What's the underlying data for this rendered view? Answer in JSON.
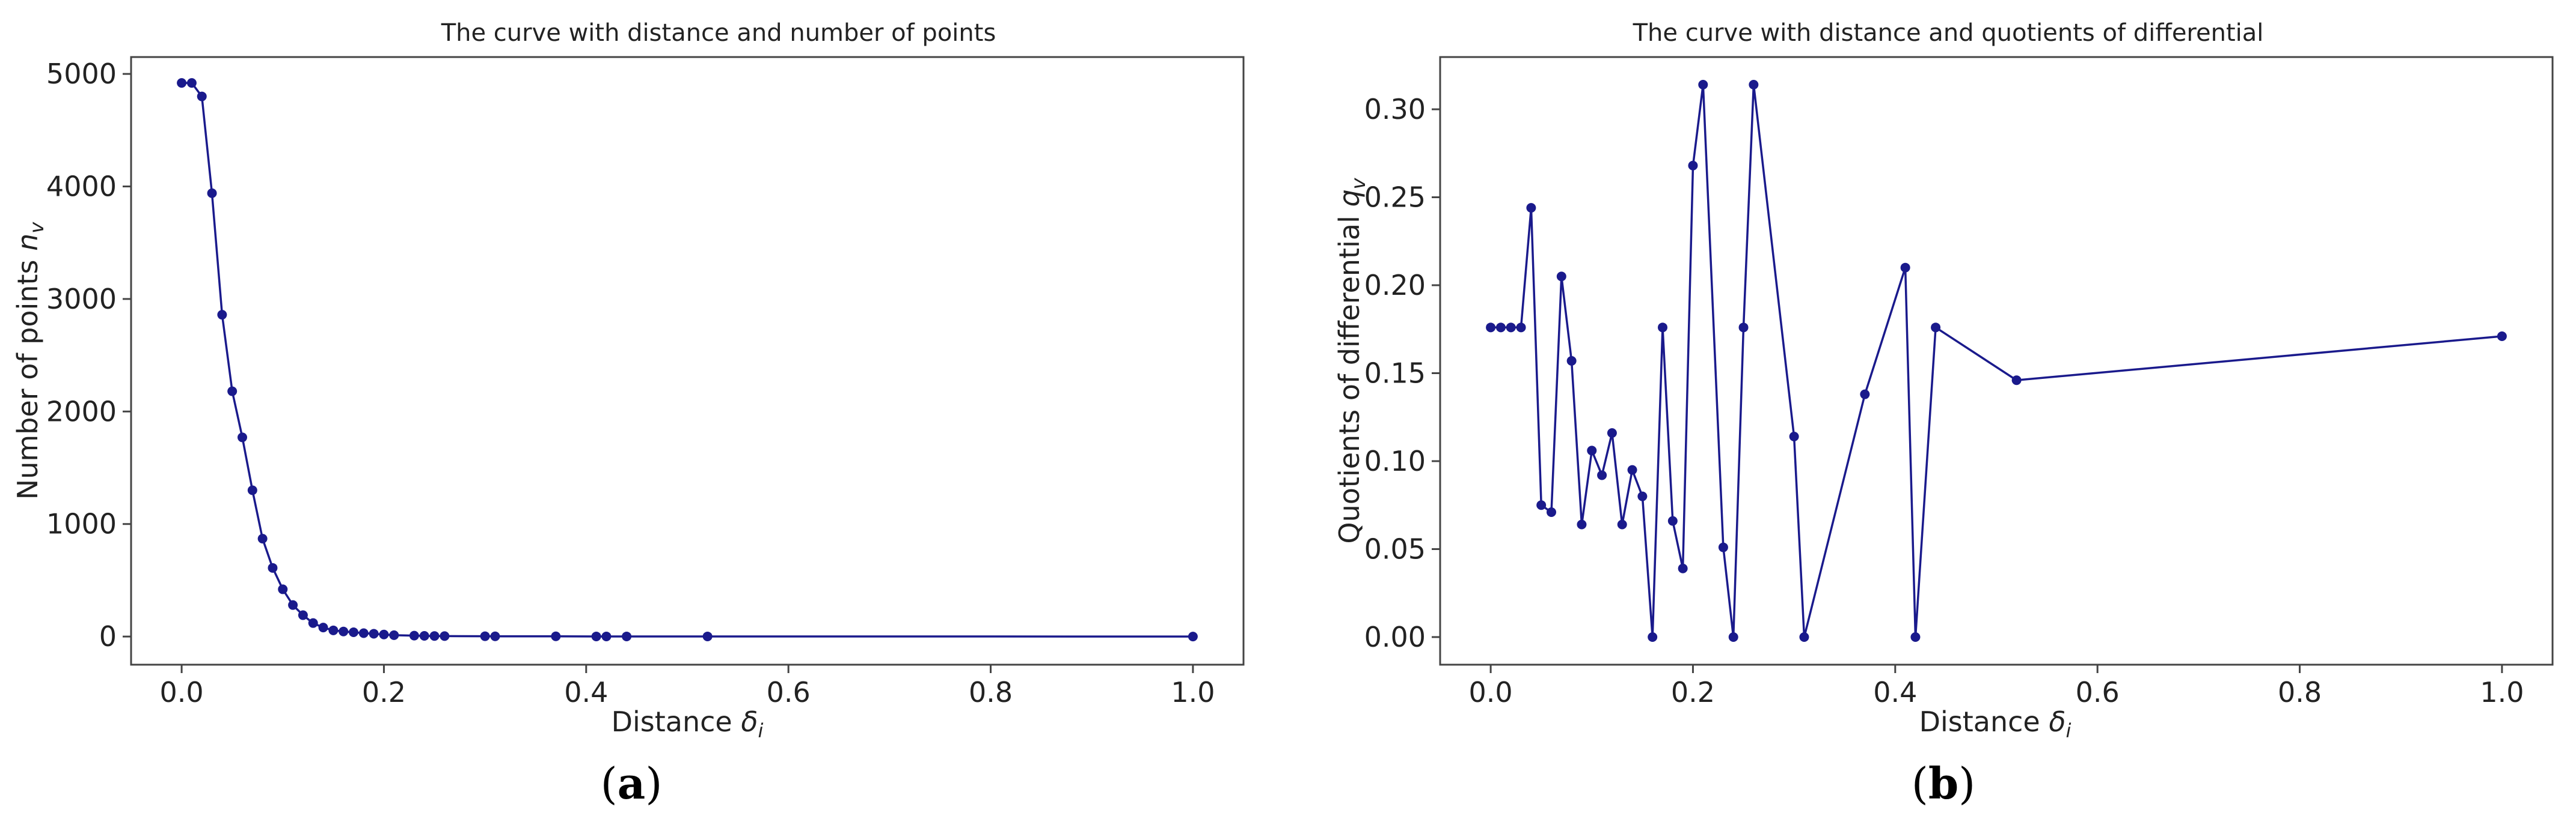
{
  "figure": {
    "captions": [
      "(a)",
      "(b)"
    ]
  },
  "colors": {
    "series": "#1a1a8c",
    "axes": "#444444"
  },
  "chart_data": [
    {
      "type": "line",
      "title": "The curve with distance and number of points",
      "xlabel": "Distance δ_i",
      "ylabel": "Number of points n_v",
      "xlim": [
        -0.05,
        1.05
      ],
      "ylim": [
        -250,
        5150
      ],
      "xticks": [
        0.0,
        0.2,
        0.4,
        0.6,
        0.8,
        1.0
      ],
      "xtick_labels": [
        "0.0",
        "0.2",
        "0.4",
        "0.6",
        "0.8",
        "1.0"
      ],
      "yticks": [
        0,
        1000,
        2000,
        3000,
        4000,
        5000
      ],
      "ytick_labels": [
        "0",
        "1000",
        "2000",
        "3000",
        "4000",
        "5000"
      ],
      "grid": false,
      "series": [
        {
          "marker": "circle",
          "x": [
            0.0,
            0.01,
            0.02,
            0.03,
            0.04,
            0.05,
            0.06,
            0.07,
            0.08,
            0.09,
            0.1,
            0.11,
            0.12,
            0.13,
            0.14,
            0.15,
            0.16,
            0.17,
            0.18,
            0.19,
            0.2,
            0.21,
            0.23,
            0.24,
            0.25,
            0.26,
            0.3,
            0.31,
            0.37,
            0.41,
            0.42,
            0.44,
            0.52,
            1.0
          ],
          "y": [
            4920,
            4920,
            4800,
            3940,
            2860,
            2180,
            1770,
            1300,
            870,
            610,
            420,
            280,
            190,
            120,
            80,
            55,
            45,
            38,
            30,
            25,
            18,
            12,
            8,
            6,
            5,
            4,
            3,
            2,
            2,
            1,
            1,
            1,
            1,
            0
          ]
        }
      ]
    },
    {
      "type": "line",
      "title": "The curve with distance and quotients of differential",
      "xlabel": "Distance δ_i",
      "ylabel": "Quotients of differential q_v",
      "xlim": [
        -0.05,
        1.05
      ],
      "ylim": [
        -0.0157,
        0.3297
      ],
      "xticks": [
        0.0,
        0.2,
        0.4,
        0.6,
        0.8,
        1.0
      ],
      "xtick_labels": [
        "0.0",
        "0.2",
        "0.4",
        "0.6",
        "0.8",
        "1.0"
      ],
      "yticks": [
        0.0,
        0.05,
        0.1,
        0.15,
        0.2,
        0.25,
        0.3
      ],
      "ytick_labels": [
        "0.00",
        "0.05",
        "0.10",
        "0.15",
        "0.20",
        "0.25",
        "0.30"
      ],
      "grid": false,
      "series": [
        {
          "marker": "circle",
          "x": [
            0.0,
            0.01,
            0.02,
            0.03,
            0.04,
            0.05,
            0.06,
            0.07,
            0.08,
            0.09,
            0.1,
            0.11,
            0.12,
            0.13,
            0.14,
            0.15,
            0.16,
            0.17,
            0.18,
            0.19,
            0.2,
            0.21,
            0.23,
            0.24,
            0.25,
            0.26,
            0.3,
            0.31,
            0.37,
            0.41,
            0.42,
            0.44,
            0.52,
            1.0
          ],
          "y": [
            0.176,
            0.176,
            0.176,
            0.176,
            0.244,
            0.075,
            0.071,
            0.205,
            0.157,
            0.064,
            0.106,
            0.092,
            0.116,
            0.064,
            0.095,
            0.08,
            0.0,
            0.176,
            0.066,
            0.039,
            0.268,
            0.314,
            0.051,
            0.0,
            0.176,
            0.314,
            0.114,
            0.0,
            0.138,
            0.21,
            0.0,
            0.176,
            0.146,
            0.171
          ]
        }
      ]
    }
  ]
}
